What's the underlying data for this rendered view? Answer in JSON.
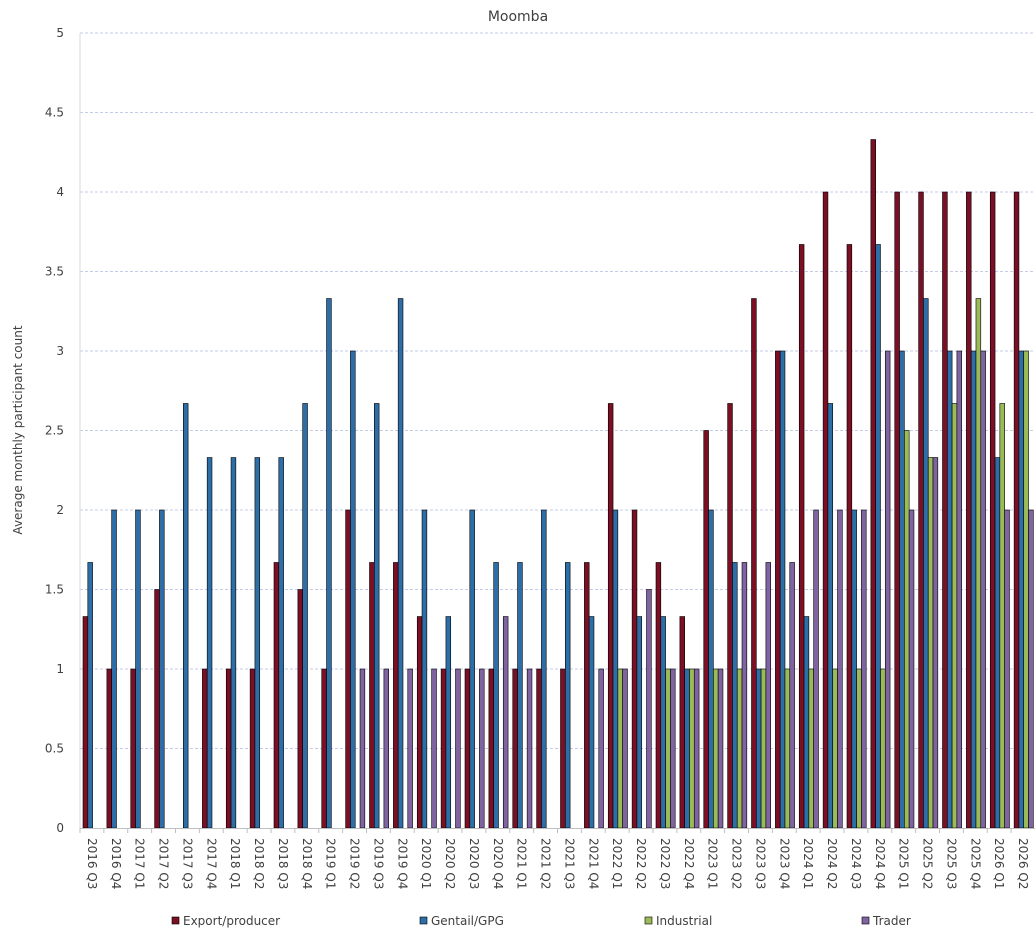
{
  "chart_data": {
    "type": "bar",
    "title": "Moomba",
    "xlabel": "",
    "ylabel": "Average monthly participant count",
    "ylim": [
      0,
      5
    ],
    "yticks": [
      "0",
      "0.5",
      "1",
      "1.5",
      "2",
      "2.5",
      "3",
      "3.5",
      "4",
      "4.5",
      "5"
    ],
    "grid": "horizontal dashed",
    "legend_position": "bottom",
    "categories": [
      "2016 Q3",
      "2016 Q4",
      "2017 Q1",
      "2017 Q2",
      "2017 Q3",
      "2017 Q4",
      "2018 Q1",
      "2018 Q2",
      "2018 Q3",
      "2018 Q4",
      "2019 Q1",
      "2019 Q2",
      "2019 Q3",
      "2019 Q4",
      "2020 Q1",
      "2020 Q2",
      "2020 Q3",
      "2020 Q4",
      "2021 Q1",
      "2021 Q2",
      "2021 Q3",
      "2021 Q4",
      "2022 Q1",
      "2022 Q2",
      "2022 Q3",
      "2022 Q4",
      "2023 Q1",
      "2023 Q2",
      "2023 Q3",
      "2023 Q4",
      "2024 Q1",
      "2024 Q2",
      "2024 Q3",
      "2024 Q4",
      "2025 Q1",
      "2025 Q2",
      "2025 Q3",
      "2025 Q4",
      "2026 Q1",
      "2026 Q2"
    ],
    "series": [
      {
        "name": "Export/producer",
        "color": "#7b0f24",
        "values": [
          1.33,
          1,
          1,
          1.5,
          null,
          1,
          1,
          1,
          1.67,
          1.5,
          1,
          2,
          1.67,
          1.67,
          1.33,
          1,
          1,
          1,
          1,
          1,
          1,
          1.67,
          2.67,
          2,
          1.67,
          1.33,
          2.5,
          2.67,
          3.33,
          3,
          3.67,
          4,
          3.67,
          4.33,
          4,
          4,
          4,
          4,
          4,
          4
        ]
      },
      {
        "name": "Gentail/GPG",
        "color": "#2e6ea6",
        "values": [
          1.67,
          2,
          2,
          2,
          2.67,
          2.33,
          2.33,
          2.33,
          2.33,
          2.67,
          3.33,
          3,
          2.67,
          3.33,
          2,
          1.33,
          2,
          1.67,
          1.67,
          2,
          1.67,
          1.33,
          2,
          1.33,
          1.33,
          1,
          2,
          1.67,
          1,
          3,
          1.33,
          2.67,
          2,
          3.67,
          3,
          3.33,
          3,
          3,
          2.33,
          3
        ]
      },
      {
        "name": "Industrial",
        "color": "#9bbb59",
        "values": [
          null,
          null,
          null,
          null,
          null,
          null,
          null,
          null,
          null,
          null,
          null,
          null,
          null,
          null,
          null,
          null,
          null,
          null,
          null,
          null,
          null,
          null,
          1,
          null,
          1,
          1,
          1,
          1,
          1,
          1,
          1,
          1,
          1,
          1,
          2.5,
          2.33,
          2.67,
          3.33,
          2.67,
          3
        ]
      },
      {
        "name": "Trader",
        "color": "#8064a2",
        "values": [
          null,
          null,
          null,
          null,
          null,
          null,
          null,
          null,
          null,
          null,
          null,
          1,
          1,
          1,
          1,
          1,
          1,
          1.33,
          1,
          null,
          null,
          1,
          1,
          1.5,
          1,
          1,
          1,
          1.67,
          1.67,
          1.67,
          2,
          2,
          2,
          3,
          2,
          2.33,
          3,
          3,
          2,
          2
        ]
      }
    ]
  }
}
